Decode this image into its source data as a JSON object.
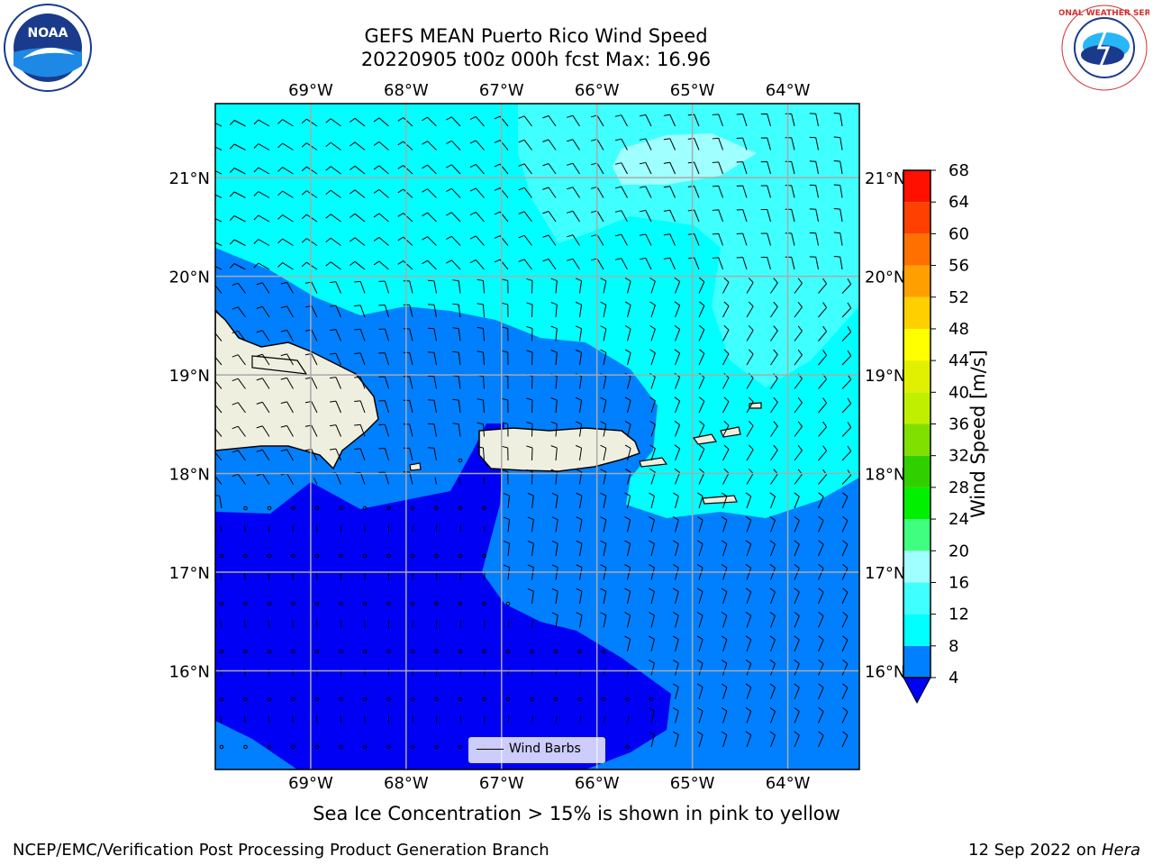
{
  "title": {
    "line1": "GEFS MEAN Puerto Rico Wind Speed",
    "line2": "20220905 t00z 000h fcst   Max: 16.96"
  },
  "map": {
    "region": "Puerto Rico",
    "lon_labels": [
      "69°W",
      "68°W",
      "67°W",
      "66°W",
      "65°W",
      "64°W"
    ],
    "lat_labels": [
      "21°N",
      "20°N",
      "19°N",
      "18°N",
      "17°N",
      "16°N"
    ],
    "lon_values": [
      -69,
      -68,
      -67,
      -66,
      -65,
      -64
    ],
    "lat_values": [
      21,
      20,
      19,
      18,
      17,
      16
    ],
    "extent": {
      "lon_min": -70.0,
      "lon_max": -63.25,
      "lat_min": 15.0,
      "lat_max": 21.75
    },
    "grid": true,
    "wind_barbs": true
  },
  "colorbar": {
    "label": "Wind Speed [m/s]",
    "ticks": [
      "68",
      "64",
      "60",
      "56",
      "52",
      "48",
      "44",
      "40",
      "36",
      "32",
      "28",
      "24",
      "20",
      "16",
      "12",
      "8",
      "4"
    ],
    "colors": [
      "#0000f5",
      "#0080ff",
      "#00ffff",
      "#40ffff",
      "#a0ffff",
      "#40ff80",
      "#00f000",
      "#30d000",
      "#80e000",
      "#c0f000",
      "#e0f000",
      "#ffff00",
      "#ffd000",
      "#ffa000",
      "#ff7000",
      "#ff4000",
      "#ff1000"
    ]
  },
  "legend": {
    "label": "Wind Barbs"
  },
  "note": "Sea Ice Concentration > 15% is shown in pink to yellow",
  "footer": {
    "left": "NCEP/EMC/Verification Post Processing Product Generation Branch",
    "date": "12 Sep 2022 on ",
    "host": "Hera"
  },
  "logos": {
    "left_text": "NOAA",
    "right_text": "NATIONAL WEATHER SERVICE"
  }
}
